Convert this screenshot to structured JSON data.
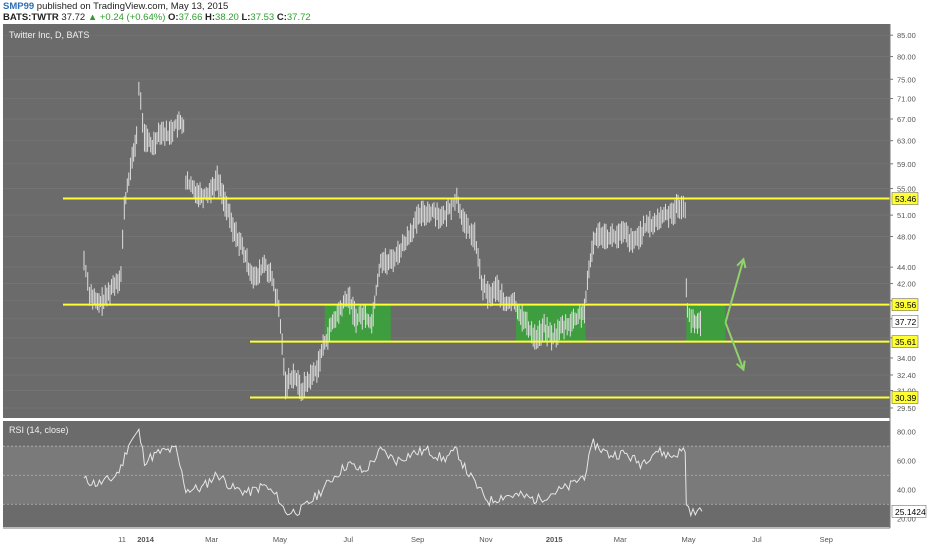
{
  "header": {
    "author": "SMP99",
    "published_text": "published on TradingView.com, May 13, 2015",
    "symbol": "BATS:TWTR",
    "last": "37.72",
    "change": "+0.24 (+0.64%)",
    "open_label": "O:",
    "open": "37.66",
    "high_label": "H:",
    "high": "38.20",
    "low_label": "L:",
    "low": "37.53",
    "close_label": "C:",
    "close": "37.72"
  },
  "colors": {
    "pane_bg": "#6b6b6b",
    "level_line": "#ffff33",
    "zone_fill": "#3aa33a",
    "arrow": "#8fd36a",
    "price_bar": "#dcdcdc",
    "rsi_line": "#e6e6e6",
    "rsi_band": "#7a7a7a"
  },
  "chart_data": [
    {
      "type": "line",
      "title": "Twitter Inc, D, BATS",
      "price_axis_ticks": [
        "85.00",
        "80.00",
        "75.00",
        "71.00",
        "67.00",
        "63.00",
        "59.00",
        "55.00",
        "51.00",
        "48.00",
        "44.00",
        "42.00",
        "40.00",
        "38.00",
        "36.00",
        "34.00",
        "32.40",
        "31.00",
        "29.50"
      ],
      "x_axis_ticks": [
        "11",
        "2014",
        "Mar",
        "May",
        "Jul",
        "Sep",
        "Nov",
        "2015",
        "Mar",
        "May",
        "Jul",
        "Sep"
      ],
      "ylim": [
        29.0,
        87.0
      ],
      "levels": [
        {
          "label": "53.46",
          "value": 53.46
        },
        {
          "label": "39.56",
          "value": 39.56
        },
        {
          "label": "35.61",
          "value": 35.61
        },
        {
          "label": "30.39",
          "value": 30.39
        }
      ],
      "last_price_label": "37.72",
      "zones": [
        {
          "from": "2014-06-10",
          "to": "2014-08-08",
          "low": 35.61,
          "high": 39.56
        },
        {
          "from": "2014-11-28",
          "to": "2015-01-29",
          "low": 35.61,
          "high": 39.56
        },
        {
          "from": "2015-04-29",
          "to": "2015-06-03",
          "low": 35.61,
          "high": 39.56
        }
      ],
      "projection_arrows": [
        {
          "direction": "up",
          "from_date": "2015-06-03",
          "to_date": "2015-06-19",
          "from_price": 37.6,
          "to_price": 45.0
        },
        {
          "direction": "down",
          "from_date": "2015-06-03",
          "to_date": "2015-06-19",
          "from_price": 37.6,
          "to_price": 32.9
        }
      ],
      "series": [
        {
          "name": "",
          "points": [
            [
              "2013-11-07",
              44.9
            ],
            [
              "2013-11-12",
              41.0
            ],
            [
              "2013-11-19",
              39.6
            ],
            [
              "2013-11-26",
              40.2
            ],
            [
              "2013-12-03",
              41.8
            ],
            [
              "2013-12-10",
              43.0
            ],
            [
              "2013-12-13",
              52.0
            ],
            [
              "2013-12-17",
              56.8
            ],
            [
              "2013-12-20",
              59.5
            ],
            [
              "2013-12-24",
              64.0
            ],
            [
              "2013-12-26",
              73.0
            ],
            [
              "2013-12-31",
              63.7
            ],
            [
              "2014-01-07",
              62.0
            ],
            [
              "2014-01-14",
              65.0
            ],
            [
              "2014-01-21",
              64.0
            ],
            [
              "2014-01-28",
              66.0
            ],
            [
              "2014-02-04",
              66.0
            ],
            [
              "2014-02-06",
              56.0
            ],
            [
              "2014-02-12",
              55.0
            ],
            [
              "2014-02-20",
              54.0
            ],
            [
              "2014-02-27",
              54.5
            ],
            [
              "2014-03-06",
              56.5
            ],
            [
              "2014-03-13",
              53.0
            ],
            [
              "2014-03-20",
              49.0
            ],
            [
              "2014-03-27",
              47.0
            ],
            [
              "2014-04-03",
              44.0
            ],
            [
              "2014-04-10",
              42.5
            ],
            [
              "2014-04-17",
              44.5
            ],
            [
              "2014-04-24",
              42.5
            ],
            [
              "2014-04-30",
              39.0
            ],
            [
              "2014-05-06",
              31.5
            ],
            [
              "2014-05-13",
              32.5
            ],
            [
              "2014-05-20",
              31.0
            ],
            [
              "2014-05-27",
              32.0
            ],
            [
              "2014-06-03",
              33.0
            ],
            [
              "2014-06-10",
              35.5
            ],
            [
              "2014-06-17",
              37.5
            ],
            [
              "2014-06-24",
              39.0
            ],
            [
              "2014-07-01",
              40.5
            ],
            [
              "2014-07-08",
              38.0
            ],
            [
              "2014-07-15",
              38.5
            ],
            [
              "2014-07-22",
              37.5
            ],
            [
              "2014-07-30",
              45.0
            ],
            [
              "2014-08-06",
              44.5
            ],
            [
              "2014-08-13",
              45.5
            ],
            [
              "2014-08-20",
              47.0
            ],
            [
              "2014-08-27",
              49.0
            ],
            [
              "2014-09-03",
              51.0
            ],
            [
              "2014-09-10",
              51.5
            ],
            [
              "2014-09-17",
              51.5
            ],
            [
              "2014-09-24",
              50.5
            ],
            [
              "2014-10-01",
              52.5
            ],
            [
              "2014-10-06",
              53.5
            ],
            [
              "2014-10-13",
              49.5
            ],
            [
              "2014-10-22",
              48.0
            ],
            [
              "2014-10-28",
              42.0
            ],
            [
              "2014-11-04",
              40.5
            ],
            [
              "2014-11-11",
              41.5
            ],
            [
              "2014-11-18",
              39.5
            ],
            [
              "2014-11-25",
              40.0
            ],
            [
              "2014-12-02",
              38.5
            ],
            [
              "2014-12-09",
              37.0
            ],
            [
              "2014-12-16",
              36.0
            ],
            [
              "2014-12-23",
              37.0
            ],
            [
              "2014-12-31",
              36.0
            ],
            [
              "2015-01-07",
              37.0
            ],
            [
              "2015-01-14",
              37.5
            ],
            [
              "2015-01-21",
              38.0
            ],
            [
              "2015-01-28",
              39.0
            ],
            [
              "2015-02-05",
              47.5
            ],
            [
              "2015-02-12",
              48.5
            ],
            [
              "2015-02-19",
              48.0
            ],
            [
              "2015-02-26",
              48.0
            ],
            [
              "2015-03-05",
              48.5
            ],
            [
              "2015-03-12",
              47.0
            ],
            [
              "2015-03-19",
              48.5
            ],
            [
              "2015-03-26",
              49.5
            ],
            [
              "2015-04-02",
              50.0
            ],
            [
              "2015-04-09",
              51.0
            ],
            [
              "2015-04-16",
              51.5
            ],
            [
              "2015-04-23",
              52.5
            ],
            [
              "2015-04-28",
              51.5
            ],
            [
              "2015-04-29",
              42.0
            ],
            [
              "2015-04-30",
              39.0
            ],
            [
              "2015-05-05",
              37.5
            ],
            [
              "2015-05-13",
              37.72
            ]
          ]
        }
      ]
    },
    {
      "type": "line",
      "title": "RSI (14, close)",
      "price_axis_ticks": [
        "80.00",
        "60.00",
        "40.00",
        "20.00"
      ],
      "ylim": [
        15,
        86
      ],
      "last_value_label": "25.1424",
      "band": [
        30,
        70
      ],
      "series": [
        {
          "name": "",
          "points": [
            [
              "2013-11-07",
              47
            ],
            [
              "2013-11-19",
              44
            ],
            [
              "2013-12-03",
              48
            ],
            [
              "2013-12-10",
              55
            ],
            [
              "2013-12-17",
              72
            ],
            [
              "2013-12-26",
              80
            ],
            [
              "2013-12-31",
              60
            ],
            [
              "2014-01-14",
              66
            ],
            [
              "2014-01-28",
              68
            ],
            [
              "2014-02-06",
              40
            ],
            [
              "2014-02-20",
              41
            ],
            [
              "2014-03-06",
              51
            ],
            [
              "2014-03-20",
              41
            ],
            [
              "2014-04-03",
              38
            ],
            [
              "2014-04-17",
              43
            ],
            [
              "2014-04-30",
              34
            ],
            [
              "2014-05-06",
              24
            ],
            [
              "2014-05-20",
              26
            ],
            [
              "2014-06-03",
              36
            ],
            [
              "2014-06-17",
              48
            ],
            [
              "2014-07-01",
              58
            ],
            [
              "2014-07-15",
              52
            ],
            [
              "2014-07-30",
              67
            ],
            [
              "2014-08-13",
              60
            ],
            [
              "2014-08-27",
              65
            ],
            [
              "2014-09-10",
              67
            ],
            [
              "2014-09-24",
              61
            ],
            [
              "2014-10-06",
              67
            ],
            [
              "2014-10-13",
              55
            ],
            [
              "2014-10-28",
              38
            ],
            [
              "2014-11-04",
              32
            ],
            [
              "2014-11-18",
              36
            ],
            [
              "2014-12-02",
              36
            ],
            [
              "2014-12-16",
              33
            ],
            [
              "2014-12-31",
              38
            ],
            [
              "2015-01-14",
              42
            ],
            [
              "2015-01-28",
              50
            ],
            [
              "2015-02-05",
              72
            ],
            [
              "2015-02-19",
              64
            ],
            [
              "2015-03-05",
              65
            ],
            [
              "2015-03-19",
              58
            ],
            [
              "2015-04-02",
              67
            ],
            [
              "2015-04-16",
              63
            ],
            [
              "2015-04-28",
              68
            ],
            [
              "2015-04-29",
              29
            ],
            [
              "2015-05-05",
              24
            ],
            [
              "2015-05-13",
              25.14
            ]
          ]
        }
      ]
    }
  ]
}
